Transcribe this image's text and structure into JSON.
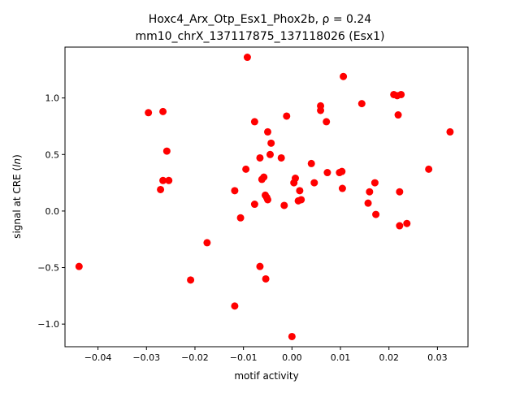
{
  "chart_data": {
    "type": "scatter",
    "title_line1": "Hoxc4_Arx_Otp_Esx1_Phox2b, ρ = 0.24",
    "title_line2": "mm10_chrX_137117875_137118026 (Esx1)",
    "xlabel": "motif activity",
    "ylabel": "signal at CRE (ln)",
    "xlim": [
      -0.0468,
      0.0363
    ],
    "ylim": [
      -1.2,
      1.45
    ],
    "x_ticks": [
      {
        "value": -0.04,
        "label": "−0.04"
      },
      {
        "value": -0.03,
        "label": "−0.03"
      },
      {
        "value": -0.02,
        "label": "−0.02"
      },
      {
        "value": -0.01,
        "label": "−0.01"
      },
      {
        "value": 0.0,
        "label": "0.00"
      },
      {
        "value": 0.01,
        "label": "0.01"
      },
      {
        "value": 0.02,
        "label": "0.02"
      },
      {
        "value": 0.03,
        "label": "0.03"
      }
    ],
    "y_ticks": [
      {
        "value": -1.0,
        "label": "−1.0"
      },
      {
        "value": -0.5,
        "label": "−0.5"
      },
      {
        "value": 0.0,
        "label": "0.0"
      },
      {
        "value": 0.5,
        "label": "0.5"
      },
      {
        "value": 1.0,
        "label": "1.0"
      }
    ],
    "grid": false,
    "marker_color": "#ff0000",
    "points": [
      {
        "x": -0.0439,
        "y": -0.49
      },
      {
        "x": -0.0296,
        "y": 0.87
      },
      {
        "x": -0.0266,
        "y": 0.88
      },
      {
        "x": -0.0258,
        "y": 0.53
      },
      {
        "x": -0.0271,
        "y": 0.19
      },
      {
        "x": -0.0266,
        "y": 0.27
      },
      {
        "x": -0.0254,
        "y": 0.27
      },
      {
        "x": -0.0209,
        "y": -0.61
      },
      {
        "x": -0.0175,
        "y": -0.28
      },
      {
        "x": -0.0118,
        "y": 0.18
      },
      {
        "x": -0.0106,
        "y": -0.06
      },
      {
        "x": -0.0118,
        "y": -0.84
      },
      {
        "x": -0.0092,
        "y": 1.36
      },
      {
        "x": -0.0095,
        "y": 0.37
      },
      {
        "x": -0.0077,
        "y": 0.79
      },
      {
        "x": -0.0077,
        "y": 0.06
      },
      {
        "x": -0.0066,
        "y": 0.47
      },
      {
        "x": -0.0062,
        "y": 0.28
      },
      {
        "x": -0.0058,
        "y": 0.3
      },
      {
        "x": -0.0066,
        "y": -0.49
      },
      {
        "x": -0.0055,
        "y": 0.14
      },
      {
        "x": -0.005,
        "y": 0.1
      },
      {
        "x": -0.005,
        "y": 0.7
      },
      {
        "x": -0.0043,
        "y": 0.6
      },
      {
        "x": -0.0045,
        "y": 0.5
      },
      {
        "x": -0.0052,
        "y": 0.12
      },
      {
        "x": -0.0054,
        "y": -0.6
      },
      {
        "x": -0.0022,
        "y": 0.47
      },
      {
        "x": -0.0016,
        "y": 0.05
      },
      {
        "x": -0.0011,
        "y": 0.84
      },
      {
        "x": 0.0,
        "y": -1.11
      },
      {
        "x": 0.0004,
        "y": 0.25
      },
      {
        "x": 0.0007,
        "y": 0.29
      },
      {
        "x": 0.0013,
        "y": 0.09
      },
      {
        "x": 0.0016,
        "y": 0.18
      },
      {
        "x": 0.0019,
        "y": 0.1
      },
      {
        "x": 0.004,
        "y": 0.42
      },
      {
        "x": 0.0046,
        "y": 0.25
      },
      {
        "x": 0.0059,
        "y": 0.93
      },
      {
        "x": 0.0059,
        "y": 0.89
      },
      {
        "x": 0.0071,
        "y": 0.79
      },
      {
        "x": 0.0073,
        "y": 0.34
      },
      {
        "x": 0.0098,
        "y": 0.34
      },
      {
        "x": 0.0103,
        "y": 0.35
      },
      {
        "x": 0.0104,
        "y": 0.2
      },
      {
        "x": 0.0106,
        "y": 1.19
      },
      {
        "x": 0.0144,
        "y": 0.95
      },
      {
        "x": 0.0157,
        "y": 0.07
      },
      {
        "x": 0.016,
        "y": 0.17
      },
      {
        "x": 0.0171,
        "y": 0.25
      },
      {
        "x": 0.0173,
        "y": -0.03
      },
      {
        "x": 0.021,
        "y": 1.03
      },
      {
        "x": 0.0217,
        "y": 1.02
      },
      {
        "x": 0.0225,
        "y": 1.03
      },
      {
        "x": 0.0219,
        "y": 0.85
      },
      {
        "x": 0.0222,
        "y": 0.17
      },
      {
        "x": 0.0222,
        "y": -0.13
      },
      {
        "x": 0.0237,
        "y": -0.11
      },
      {
        "x": 0.0282,
        "y": 0.37
      },
      {
        "x": 0.0326,
        "y": 0.7
      }
    ]
  }
}
